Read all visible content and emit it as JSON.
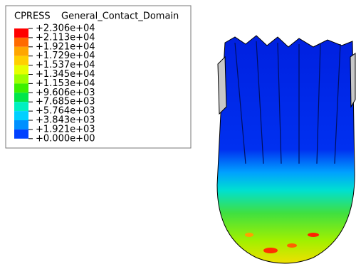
{
  "legend": {
    "variable": "CPRESS",
    "domain": "General_Contact_Domain",
    "levels": [
      "+2.306e+04",
      "+2.113e+04",
      "+1.921e+04",
      "+1.729e+04",
      "+1.537e+04",
      "+1.345e+04",
      "+1.153e+04",
      "+9.606e+03",
      "+7.685e+03",
      "+5.764e+03",
      "+3.843e+03",
      "+1.921e+03",
      "+0.000e+00"
    ],
    "colors": [
      "#ff0000",
      "#ff6a00",
      "#ffa600",
      "#ffd000",
      "#e6ff00",
      "#9cff00",
      "#3cf000",
      "#00e64a",
      "#00f0c0",
      "#00d0ff",
      "#0090ff",
      "#0040ff"
    ]
  }
}
